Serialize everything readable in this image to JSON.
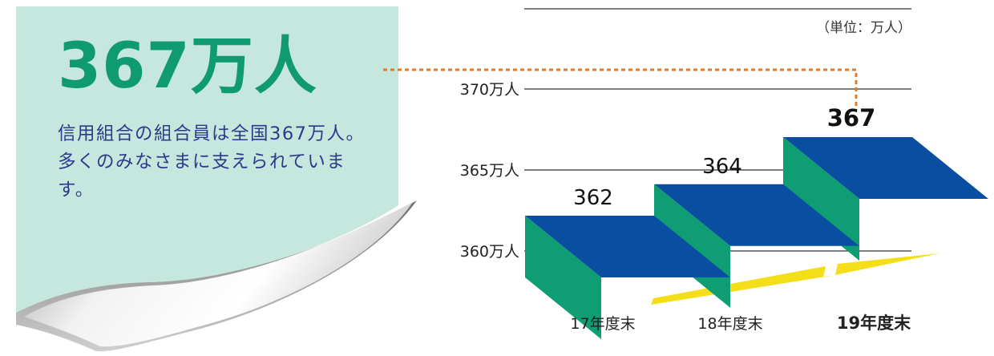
{
  "headline": "367万人",
  "description": "信用組合の組合員は全国367万人。多くのみなさまに支えられています。",
  "colors": {
    "panel": "#c5e7dd",
    "headline": "#0f9a72",
    "description": "#2a3a8c",
    "bar_top": "#0a4ea2",
    "bar_riser": "#0f9d74",
    "connector": "#e87722",
    "arrow": "#f3de17"
  },
  "chart_data": {
    "type": "bar",
    "unit_note": "（単位：万人）",
    "categories": [
      "17年度末",
      "18年度末",
      "19年度末"
    ],
    "values": [
      362,
      364,
      367
    ],
    "value_labels": [
      "362",
      "364",
      "367"
    ],
    "ylim": [
      360,
      370
    ],
    "yticks": [
      {
        "value": 370,
        "label": "370万人"
      },
      {
        "value": 365,
        "label": "365万人"
      },
      {
        "value": 360,
        "label": "360万人"
      }
    ],
    "highlight_index": 2,
    "grid": true,
    "style": "3d-staircase"
  }
}
